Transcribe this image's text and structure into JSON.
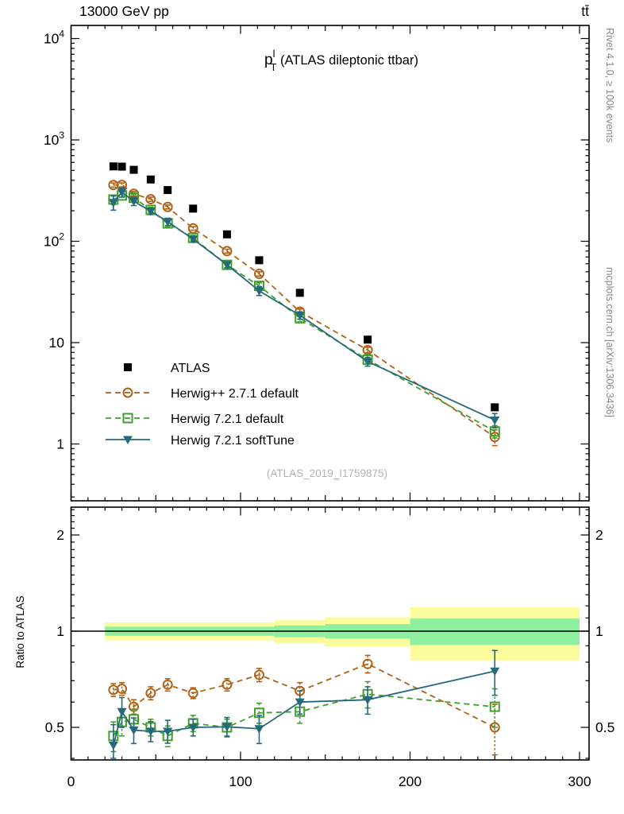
{
  "header": {
    "left": "13000 GeV pp",
    "right": "tt̄"
  },
  "side_text": {
    "top": "Rivet 4.1.0, ≥ 100k events",
    "bottom": "mcplots.cern.ch [arXiv:1306.3436]"
  },
  "watermark": "(ATLAS_2019_I1759875)",
  "colors": {
    "atlas": "#000000",
    "herwigpp": "#b06216",
    "herwig7_default": "#3fa12c",
    "herwig7_softtune": "#26697b",
    "band_green": "#8ef09e",
    "band_yellow": "#fcfc9d",
    "frame": "#000000",
    "side_text": "#8a8a8a",
    "watermark": "#b3b3b3"
  },
  "legend": {
    "items": [
      {
        "label": "ATLAS",
        "marker": "square-filled",
        "line": "none",
        "color": "#000000"
      },
      {
        "label": "Herwig++ 2.7.1 default",
        "marker": "circle-open",
        "line": "dashed",
        "color": "#b06216"
      },
      {
        "label": "Herwig 7.2.1 default",
        "marker": "square-open",
        "line": "dashed",
        "color": "#3fa12c"
      },
      {
        "label": "Herwig 7.2.1 softTune",
        "marker": "triangle-down",
        "line": "solid",
        "color": "#26697b"
      }
    ]
  },
  "chart_data": [
    {
      "id": "main",
      "type": "scatter",
      "title_parts": {
        "main": "p",
        "sup": "l",
        "sub": "T",
        "rest": " (ATLAS dileptonic ttbar)"
      },
      "y_log": true,
      "x_range": [
        0,
        305.6
      ],
      "y_range": [
        0.275,
        13500
      ],
      "x_ticks": {
        "major": [
          0,
          100,
          200,
          300
        ],
        "labels": [
          "0",
          "100",
          "200",
          "300"
        ],
        "minor_step": 10,
        "mid_step": 50
      },
      "y_ticks": [
        {
          "value": 10000,
          "base": "10",
          "exp": "4"
        },
        {
          "value": 1000,
          "base": "10",
          "exp": "3"
        },
        {
          "value": 100,
          "base": "10",
          "exp": "2"
        },
        {
          "value": 10,
          "base": "10",
          "exp": ""
        },
        {
          "value": 1,
          "base": "1",
          "exp": ""
        }
      ],
      "x": [
        25,
        30,
        37,
        47,
        57,
        72,
        92,
        111,
        135,
        175,
        250
      ],
      "series": [
        {
          "name": "ATLAS",
          "marker": "square-filled",
          "line": "none",
          "color": "#000000",
          "values": [
            548,
            545,
            507,
            407,
            320,
            210,
            117,
            65,
            31,
            10.7,
            2.3
          ],
          "err_frac": 0.03
        },
        {
          "name": "Herwig++ 2.7.1 default",
          "marker": "circle-open",
          "line": "dashed",
          "color": "#b06216",
          "values": [
            359,
            360,
            294,
            260,
            218,
            134,
            80,
            47.7,
            20.2,
            8.45,
            1.17
          ]
        },
        {
          "name": "Herwig 7.2.1 default",
          "marker": "square-open",
          "line": "dashed",
          "color": "#3fa12c",
          "values": [
            258,
            283,
            269,
            204,
            150,
            108,
            58.5,
            36.3,
            17.4,
            6.8,
            1.33
          ]
        },
        {
          "name": "Herwig 7.2.1 softTune",
          "marker": "triangle-down",
          "line": "solid",
          "color": "#26697b",
          "values": [
            241,
            305,
            248,
            198,
            156,
            105,
            58.7,
            32.4,
            18.6,
            6.5,
            1.72
          ]
        }
      ]
    },
    {
      "id": "ratio",
      "type": "ratio-line",
      "y_label": "Ratio to ATLAS",
      "y_log": true,
      "y_range": [
        0.395,
        2.44
      ],
      "reference_line": 1,
      "y_ticks": {
        "values": [
          2,
          1,
          0.5
        ],
        "labels": [
          "2",
          "1",
          "0.5"
        ]
      },
      "bands": [
        {
          "x0": 20,
          "x1": 120,
          "green": 0.033,
          "yellow": 0.065
        },
        {
          "x0": 120,
          "x1": 150,
          "green": 0.042,
          "yellow": 0.082
        },
        {
          "x0": 150,
          "x1": 200,
          "green": 0.052,
          "yellow": 0.105
        },
        {
          "x0": 200,
          "x1": 300,
          "green": 0.095,
          "yellow": 0.19
        }
      ],
      "x": [
        25,
        30,
        37,
        47,
        57,
        72,
        92,
        111,
        135,
        175,
        250
      ],
      "series": [
        {
          "name": "Herwig++ 2.7.1 default",
          "marker": "circle-open",
          "line": "dashed",
          "color": "#b06216",
          "ratios": [
            0.655,
            0.66,
            0.58,
            0.64,
            0.68,
            0.64,
            0.68,
            0.73,
            0.65,
            0.79,
            0.5
          ],
          "errs": [
            0.03,
            0.03,
            0.03,
            0.03,
            0.03,
            0.025,
            0.03,
            0.035,
            0.04,
            0.05,
            0.09
          ]
        },
        {
          "name": "Herwig 7.2.1 default",
          "marker": "square-open",
          "line": "dashed",
          "color": "#3fa12c",
          "ratios": [
            0.47,
            0.52,
            0.53,
            0.5,
            0.47,
            0.515,
            0.5,
            0.555,
            0.56,
            0.635,
            0.58
          ],
          "errs": [
            0.05,
            0.05,
            0.04,
            0.03,
            0.035,
            0.03,
            0.03,
            0.04,
            0.045,
            0.06,
            0.08
          ]
        },
        {
          "name": "Herwig 7.2.1 softTune",
          "marker": "triangle-down",
          "line": "solid",
          "color": "#26697b",
          "ratios": [
            0.44,
            0.56,
            0.49,
            0.486,
            0.486,
            0.5,
            0.502,
            0.495,
            0.6,
            0.61,
            0.75
          ],
          "errs": [
            0.07,
            0.06,
            0.045,
            0.035,
            0.04,
            0.03,
            0.035,
            0.05,
            0.05,
            0.06,
            0.12
          ]
        }
      ]
    }
  ]
}
